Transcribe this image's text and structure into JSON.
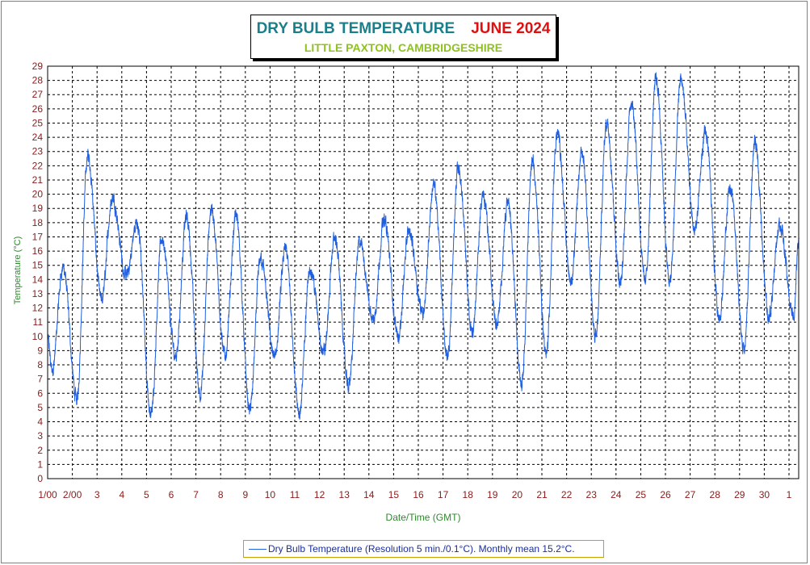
{
  "title": {
    "main": "DRY BULB TEMPERATURE",
    "month": "JUNE 2024",
    "subtitle": "LITTLE PAXTON, CAMBRIDGESHIRE"
  },
  "colors": {
    "title_main": "#1a7f8a",
    "title_month": "#e01010",
    "subtitle": "#8fc21e",
    "series": "#1f5fe0",
    "tick_labels": "#8b1a1a",
    "axis_titles": "#2c8a2c",
    "grid": "#000000"
  },
  "legend": {
    "text": "Dry Bulb Temperature (Resolution 5 min./0.1°C). Monthly mean 15.2°C."
  },
  "chart_data": {
    "type": "line",
    "title": "DRY BULB TEMPERATURE JUNE 2024",
    "subtitle": "LITTLE PAXTON, CAMBRIDGESHIRE",
    "xlabel": "Date/Time (GMT)",
    "ylabel": "Temperature (°C)",
    "ylim": [
      0,
      29
    ],
    "yticks": [
      0,
      1,
      2,
      3,
      4,
      5,
      6,
      7,
      8,
      9,
      10,
      11,
      12,
      13,
      14,
      15,
      16,
      17,
      18,
      19,
      20,
      21,
      22,
      23,
      24,
      25,
      26,
      27,
      28,
      29
    ],
    "xlim_days": [
      0,
      30.4
    ],
    "xtick_labels": [
      "1/00",
      "2/00",
      "3",
      "4",
      "5",
      "6",
      "7",
      "8",
      "9",
      "10",
      "11",
      "12",
      "13",
      "14",
      "15",
      "16",
      "17",
      "18",
      "19",
      "20",
      "21",
      "22",
      "23",
      "24",
      "25",
      "26",
      "27",
      "28",
      "29",
      "30",
      "1"
    ],
    "grid": true,
    "legend_position": "bottom-center",
    "series": [
      {
        "name": "Dry Bulb Temperature (Resolution 5 min./0.1°C)",
        "daily_min": [
          7.6,
          5.5,
          12.5,
          14.2,
          4.5,
          8.6,
          6.0,
          8.6,
          4.8,
          8.5,
          4.6,
          8.9,
          6.5,
          11.2,
          10.0,
          11.7,
          8.6,
          10.3,
          10.8,
          6.8,
          8.7,
          13.9,
          9.9,
          13.8,
          13.9,
          13.8,
          17.5,
          11.4,
          9.1,
          11.4
        ],
        "daily_max": [
          14.9,
          22.7,
          19.8,
          18.0,
          16.9,
          18.4,
          19.0,
          18.5,
          15.5,
          16.1,
          14.8,
          17.0,
          16.6,
          18.2,
          17.4,
          20.6,
          21.9,
          20.0,
          19.4,
          22.4,
          24.4,
          22.9,
          25.1,
          26.6,
          28.1,
          28.1,
          24.3,
          20.5,
          23.5,
          17.9
        ],
        "end_value": 16.9,
        "monthly_mean": 15.2
      }
    ]
  }
}
